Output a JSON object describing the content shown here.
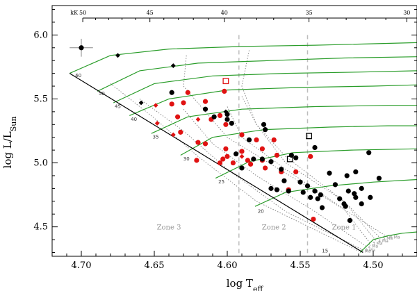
{
  "chart_data": {
    "type": "scatter",
    "title": "",
    "xlabel": "log T_eff",
    "ylabel": "log L/L_Sun",
    "xlim": [
      4.72,
      4.47
    ],
    "ylim": [
      4.27,
      6.23
    ],
    "x_ticks": [
      {
        "value": 4.7,
        "label": "4.70"
      },
      {
        "value": 4.65,
        "label": "4.65"
      },
      {
        "value": 4.6,
        "label": "4.60"
      },
      {
        "value": 4.55,
        "label": "4.55"
      },
      {
        "value": 4.5,
        "label": "4.50"
      }
    ],
    "y_ticks": [
      {
        "value": 4.5,
        "label": "4.5"
      },
      {
        "value": 5.0,
        "label": "5.0"
      },
      {
        "value": 5.5,
        "label": "5.5"
      },
      {
        "value": 6.0,
        "label": "6.0"
      }
    ],
    "top_axis": {
      "unit": "kK",
      "ticks": [
        {
          "value": 4.699,
          "label": "50"
        },
        {
          "value": 4.653,
          "label": "45"
        },
        {
          "value": 4.602,
          "label": "40"
        },
        {
          "value": 4.544,
          "label": "35"
        },
        {
          "value": 4.477,
          "label": "30"
        }
      ]
    },
    "error_bar": {
      "x": 4.7,
      "y": 5.9,
      "xerr": 0.008,
      "yerr": 0.07
    },
    "zams": {
      "points": [
        [
          4.708,
          5.7
        ],
        [
          4.507,
          4.3
        ]
      ],
      "mass_labels": [
        {
          "label": "60",
          "x": 4.702,
          "y": 5.67
        },
        {
          "label": "50",
          "x": 4.686,
          "y": 5.53
        },
        {
          "label": "45",
          "x": 4.675,
          "y": 5.43
        },
        {
          "label": "40",
          "x": 4.664,
          "y": 5.33
        },
        {
          "label": "35",
          "x": 4.649,
          "y": 5.19
        },
        {
          "label": "30",
          "x": 4.628,
          "y": 5.02
        },
        {
          "label": "25",
          "x": 4.604,
          "y": 4.84
        },
        {
          "label": "20",
          "x": 4.577,
          "y": 4.61
        },
        {
          "label": "15",
          "x": 4.533,
          "y": 4.3
        }
      ]
    },
    "tracks": [
      [
        [
          4.708,
          5.7
        ],
        [
          4.68,
          5.84
        ],
        [
          4.64,
          5.89
        ],
        [
          4.59,
          5.91
        ],
        [
          4.54,
          5.92
        ],
        [
          4.47,
          5.94
        ]
      ],
      [
        [
          4.689,
          5.56
        ],
        [
          4.66,
          5.72
        ],
        [
          4.62,
          5.78
        ],
        [
          4.57,
          5.8
        ],
        [
          4.52,
          5.82
        ],
        [
          4.47,
          5.83
        ]
      ],
      [
        [
          4.678,
          5.47
        ],
        [
          4.65,
          5.62
        ],
        [
          4.61,
          5.68
        ],
        [
          4.56,
          5.7
        ],
        [
          4.51,
          5.71
        ],
        [
          4.47,
          5.72
        ]
      ],
      [
        [
          4.667,
          5.37
        ],
        [
          4.64,
          5.5
        ],
        [
          4.6,
          5.57
        ],
        [
          4.55,
          5.59
        ],
        [
          4.5,
          5.6
        ],
        [
          4.47,
          5.61
        ]
      ],
      [
        [
          4.652,
          5.23
        ],
        [
          4.627,
          5.36
        ],
        [
          4.59,
          5.42
        ],
        [
          4.54,
          5.44
        ],
        [
          4.49,
          5.45
        ],
        [
          4.47,
          5.45
        ]
      ],
      [
        [
          4.632,
          5.06
        ],
        [
          4.61,
          5.2
        ],
        [
          4.575,
          5.26
        ],
        [
          4.53,
          5.28
        ],
        [
          4.49,
          5.29
        ],
        [
          4.47,
          5.29
        ]
      ],
      [
        [
          4.608,
          4.88
        ],
        [
          4.585,
          5.01
        ],
        [
          4.555,
          5.08
        ],
        [
          4.515,
          5.1
        ],
        [
          4.47,
          5.11
        ]
      ],
      [
        [
          4.581,
          4.66
        ],
        [
          4.56,
          4.77
        ],
        [
          4.53,
          4.82
        ],
        [
          4.5,
          4.85
        ],
        [
          4.47,
          4.87
        ]
      ],
      [
        [
          4.509,
          4.3
        ],
        [
          4.5,
          4.4
        ],
        [
          4.49,
          4.43
        ],
        [
          4.48,
          4.45
        ],
        [
          4.47,
          4.46
        ]
      ]
    ],
    "isochrones": [
      {
        "label": "6 Ma",
        "points": [
          [
            4.628,
            5.84
          ],
          [
            4.63,
            5.6
          ],
          [
            4.6,
            5.2
          ],
          [
            4.54,
            4.78
          ],
          [
            4.49,
            4.42
          ]
        ]
      },
      {
        "label": "5 Ma",
        "points": [
          [
            4.585,
            5.88
          ],
          [
            4.59,
            5.6
          ],
          [
            4.58,
            5.3
          ],
          [
            4.56,
            5.0
          ],
          [
            4.52,
            4.7
          ],
          [
            4.495,
            4.41
          ]
        ]
      },
      {
        "label": "4 Ma",
        "points": [
          [
            4.59,
            5.52
          ],
          [
            4.58,
            5.3
          ],
          [
            4.56,
            5.05
          ],
          [
            4.52,
            4.7
          ],
          [
            4.498,
            4.39
          ]
        ]
      },
      {
        "label": "3 Ma",
        "points": [
          [
            4.6,
            5.44
          ],
          [
            4.59,
            5.2
          ],
          [
            4.56,
            4.95
          ],
          [
            4.52,
            4.64
          ],
          [
            4.502,
            4.37
          ]
        ]
      },
      {
        "label": "2 Ma",
        "points": [
          [
            4.63,
            5.42
          ],
          [
            4.61,
            5.15
          ],
          [
            4.58,
            4.9
          ],
          [
            4.54,
            4.62
          ],
          [
            4.505,
            4.35
          ]
        ]
      },
      {
        "label": "1 Ma",
        "points": [
          [
            4.66,
            5.5
          ],
          [
            4.63,
            5.25
          ],
          [
            4.6,
            4.95
          ],
          [
            4.56,
            4.62
          ],
          [
            4.507,
            4.32
          ]
        ]
      },
      {
        "label": "0 Ma",
        "points": [
          [
            4.68,
            5.62
          ],
          [
            4.65,
            5.35
          ],
          [
            4.62,
            5.05
          ],
          [
            4.58,
            4.7
          ],
          [
            4.51,
            4.31
          ]
        ]
      }
    ],
    "zone_lines": [
      {
        "x": 4.592,
        "y_from": 4.27,
        "y_to": 6.0
      },
      {
        "x": 4.545,
        "y_from": 4.27,
        "y_to": 6.0
      }
    ],
    "zones": [
      {
        "label": "Zone 3",
        "x": 4.64,
        "y": 4.48
      },
      {
        "label": "Zone 2",
        "x": 4.568,
        "y": 4.48
      },
      {
        "label": "Zone 1",
        "x": 4.52,
        "y": 4.48
      }
    ],
    "series": [
      {
        "name": "red circles",
        "color": "#e01212",
        "marker": "circle",
        "points": [
          [
            4.627,
            5.55
          ],
          [
            4.63,
            5.47
          ],
          [
            4.638,
            5.46
          ],
          [
            4.634,
            5.36
          ],
          [
            4.632,
            5.24
          ],
          [
            4.615,
            5.48
          ],
          [
            4.611,
            5.34
          ],
          [
            4.605,
            5.37
          ],
          [
            4.601,
            5.3
          ],
          [
            4.59,
            5.22
          ],
          [
            4.602,
            5.56
          ],
          [
            4.621,
            5.02
          ],
          [
            4.62,
            5.16
          ],
          [
            4.615,
            5.15
          ],
          [
            4.603,
            5.03
          ],
          [
            4.605,
            5.0
          ],
          [
            4.601,
            5.11
          ],
          [
            4.6,
            5.05
          ],
          [
            4.596,
            5.0
          ],
          [
            4.59,
            5.09
          ],
          [
            4.586,
            5.02
          ],
          [
            4.584,
            4.99
          ],
          [
            4.58,
            5.18
          ],
          [
            4.576,
            5.11
          ],
          [
            4.576,
            5.02
          ],
          [
            4.574,
            4.96
          ],
          [
            4.568,
            5.18
          ],
          [
            4.566,
            5.06
          ],
          [
            4.563,
            4.93
          ],
          [
            4.558,
            4.79
          ],
          [
            4.553,
            4.93
          ],
          [
            4.543,
            5.05
          ],
          [
            4.541,
            4.56
          ]
        ]
      },
      {
        "name": "black circles",
        "color": "#000000",
        "marker": "circle",
        "points": [
          [
            4.638,
            5.55
          ],
          [
            4.615,
            5.42
          ],
          [
            4.609,
            5.36
          ],
          [
            4.6,
            5.38
          ],
          [
            4.6,
            5.34
          ],
          [
            4.597,
            5.31
          ],
          [
            4.594,
            5.07
          ],
          [
            4.59,
            4.96
          ],
          [
            4.585,
            5.18
          ],
          [
            4.582,
            5.03
          ],
          [
            4.576,
            5.03
          ],
          [
            4.575,
            5.3
          ],
          [
            4.574,
            5.26
          ],
          [
            4.57,
            5.01
          ],
          [
            4.57,
            4.8
          ],
          [
            4.566,
            4.79
          ],
          [
            4.563,
            4.95
          ],
          [
            4.561,
            4.86
          ],
          [
            4.558,
            4.78
          ],
          [
            4.556,
            5.06
          ],
          [
            4.553,
            5.04
          ],
          [
            4.55,
            4.85
          ],
          [
            4.548,
            4.77
          ],
          [
            4.545,
            4.82
          ],
          [
            4.543,
            4.73
          ],
          [
            4.54,
            4.78
          ],
          [
            4.54,
            5.12
          ],
          [
            4.538,
            4.72
          ],
          [
            4.536,
            4.75
          ],
          [
            4.535,
            4.65
          ],
          [
            4.53,
            4.92
          ],
          [
            4.526,
            4.83
          ],
          [
            4.523,
            4.72
          ],
          [
            4.52,
            4.68
          ],
          [
            4.519,
            4.66
          ],
          [
            4.518,
            4.9
          ],
          [
            4.517,
            4.78
          ],
          [
            4.516,
            4.55
          ],
          [
            4.513,
            4.76
          ],
          [
            4.512,
            4.73
          ],
          [
            4.512,
            4.93
          ],
          [
            4.508,
            4.8
          ],
          [
            4.508,
            4.68
          ],
          [
            4.503,
            5.08
          ],
          [
            4.502,
            4.73
          ],
          [
            4.496,
            4.88
          ]
        ]
      },
      {
        "name": "red diamonds",
        "color": "#e01212",
        "marker": "diamond",
        "points": [
          [
            4.649,
            5.45
          ],
          [
            4.648,
            5.31
          ],
          [
            4.637,
            5.22
          ],
          [
            4.62,
            5.34
          ],
          [
            4.59,
            5.05
          ]
        ]
      },
      {
        "name": "black diamonds",
        "color": "#000000",
        "marker": "diamond",
        "points": [
          [
            4.675,
            5.84
          ],
          [
            4.659,
            5.47
          ],
          [
            4.637,
            5.76
          ],
          [
            4.601,
            5.4
          ]
        ]
      },
      {
        "name": "red squares",
        "color": "#e01212",
        "marker": "open-square",
        "points": [
          [
            4.601,
            5.64
          ]
        ]
      },
      {
        "name": "black squares",
        "color": "#000000",
        "marker": "open-square",
        "points": [
          [
            4.557,
            5.03
          ],
          [
            4.544,
            5.21
          ]
        ]
      }
    ]
  }
}
